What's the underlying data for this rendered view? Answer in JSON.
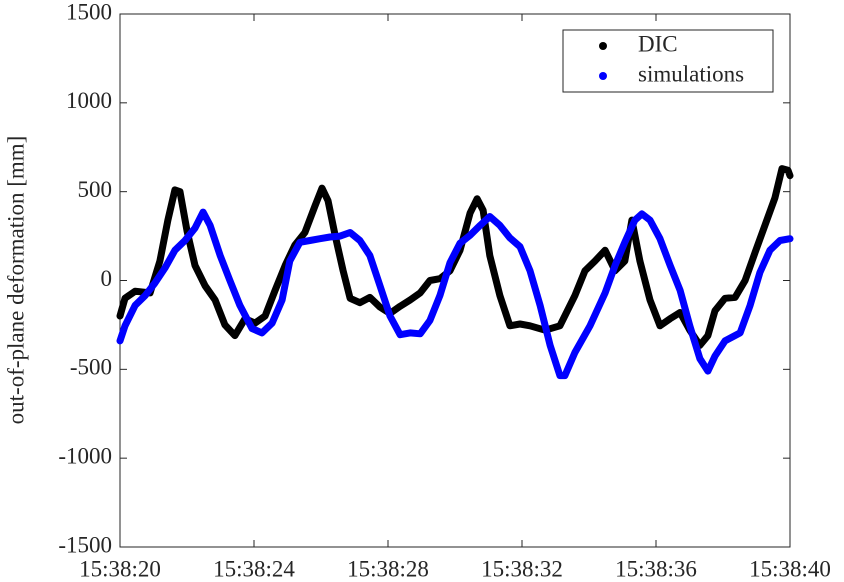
{
  "chart_data": {
    "type": "line",
    "ylabel": "out-of-plane deformation [mm]",
    "xlim": [
      20,
      40
    ],
    "xticks": [
      {
        "value": 20,
        "label": "15:38:20"
      },
      {
        "value": 24,
        "label": "15:38:24"
      },
      {
        "value": 28,
        "label": "15:38:28"
      },
      {
        "value": 32,
        "label": "15:38:32"
      },
      {
        "value": 36,
        "label": "15:38:36"
      },
      {
        "value": 40,
        "label": "15:38:40"
      }
    ],
    "ylim": [
      -1500,
      1500
    ],
    "yticks": [
      -1500,
      -1000,
      -500,
      0,
      500,
      1000,
      1500
    ],
    "legend": "upper right",
    "series": [
      {
        "name": "DIC",
        "color": "#000000",
        "x": [
          20.0,
          20.15,
          20.45,
          20.9,
          21.19,
          21.43,
          21.64,
          21.79,
          22.0,
          22.24,
          22.54,
          22.84,
          23.13,
          23.43,
          23.73,
          24.03,
          24.33,
          24.63,
          24.93,
          25.22,
          25.52,
          25.82,
          26.03,
          26.21,
          26.42,
          26.66,
          26.87,
          27.16,
          27.46,
          27.76,
          28.06,
          28.36,
          28.66,
          28.96,
          29.25,
          29.55,
          29.85,
          30.15,
          30.45,
          30.66,
          30.84,
          31.04,
          31.34,
          31.64,
          31.94,
          32.24,
          32.69,
          33.13,
          33.58,
          33.88,
          34.18,
          34.48,
          34.78,
          35.07,
          35.28,
          35.52,
          35.82,
          36.12,
          36.42,
          36.72,
          37.01,
          37.31,
          37.55,
          37.76,
          38.06,
          38.36,
          38.66,
          38.96,
          39.25,
          39.55,
          39.76,
          39.94,
          40.0
        ],
        "values": [
          -200,
          -100,
          -60,
          -70,
          110,
          340,
          510,
          500,
          280,
          85,
          -30,
          -110,
          -250,
          -310,
          -215,
          -240,
          -200,
          -55,
          85,
          200,
          270,
          420,
          520,
          450,
          255,
          55,
          -100,
          -125,
          -95,
          -150,
          -185,
          -145,
          -110,
          -70,
          0,
          10,
          55,
          170,
          380,
          460,
          395,
          140,
          -85,
          -255,
          -245,
          -255,
          -280,
          -255,
          -85,
          55,
          110,
          170,
          55,
          110,
          340,
          110,
          -110,
          -255,
          -215,
          -180,
          -280,
          -365,
          -310,
          -170,
          -100,
          -95,
          0,
          160,
          310,
          465,
          630,
          620,
          590
        ]
      },
      {
        "name": "simulations",
        "color": "#0000ff",
        "x": [
          20.0,
          20.15,
          20.45,
          20.75,
          21.04,
          21.34,
          21.64,
          21.94,
          22.24,
          22.48,
          22.69,
          22.99,
          23.28,
          23.58,
          23.94,
          24.24,
          24.54,
          24.84,
          25.07,
          25.37,
          25.67,
          25.97,
          26.27,
          26.57,
          26.87,
          27.16,
          27.46,
          27.76,
          28.06,
          28.36,
          28.66,
          28.96,
          29.25,
          29.55,
          29.85,
          30.15,
          30.45,
          30.75,
          31.04,
          31.34,
          31.64,
          31.94,
          32.24,
          32.54,
          32.84,
          33.13,
          33.28,
          33.58,
          34.03,
          34.48,
          34.78,
          35.07,
          35.37,
          35.58,
          35.82,
          36.12,
          36.42,
          36.72,
          37.01,
          37.31,
          37.55,
          37.76,
          38.06,
          38.51,
          38.81,
          39.1,
          39.4,
          39.7,
          40.0
        ],
        "values": [
          -340,
          -255,
          -140,
          -85,
          -15,
          70,
          170,
          225,
          295,
          385,
          310,
          140,
          0,
          -140,
          -270,
          -295,
          -240,
          -110,
          110,
          215,
          225,
          235,
          245,
          250,
          270,
          225,
          140,
          -30,
          -200,
          -305,
          -295,
          -300,
          -225,
          -85,
          100,
          210,
          255,
          310,
          360,
          310,
          240,
          190,
          55,
          -140,
          -365,
          -535,
          -535,
          -405,
          -255,
          -70,
          85,
          215,
          340,
          375,
          340,
          235,
          85,
          -55,
          -255,
          -440,
          -510,
          -425,
          -340,
          -295,
          -140,
          45,
          170,
          225,
          235
        ]
      }
    ]
  }
}
